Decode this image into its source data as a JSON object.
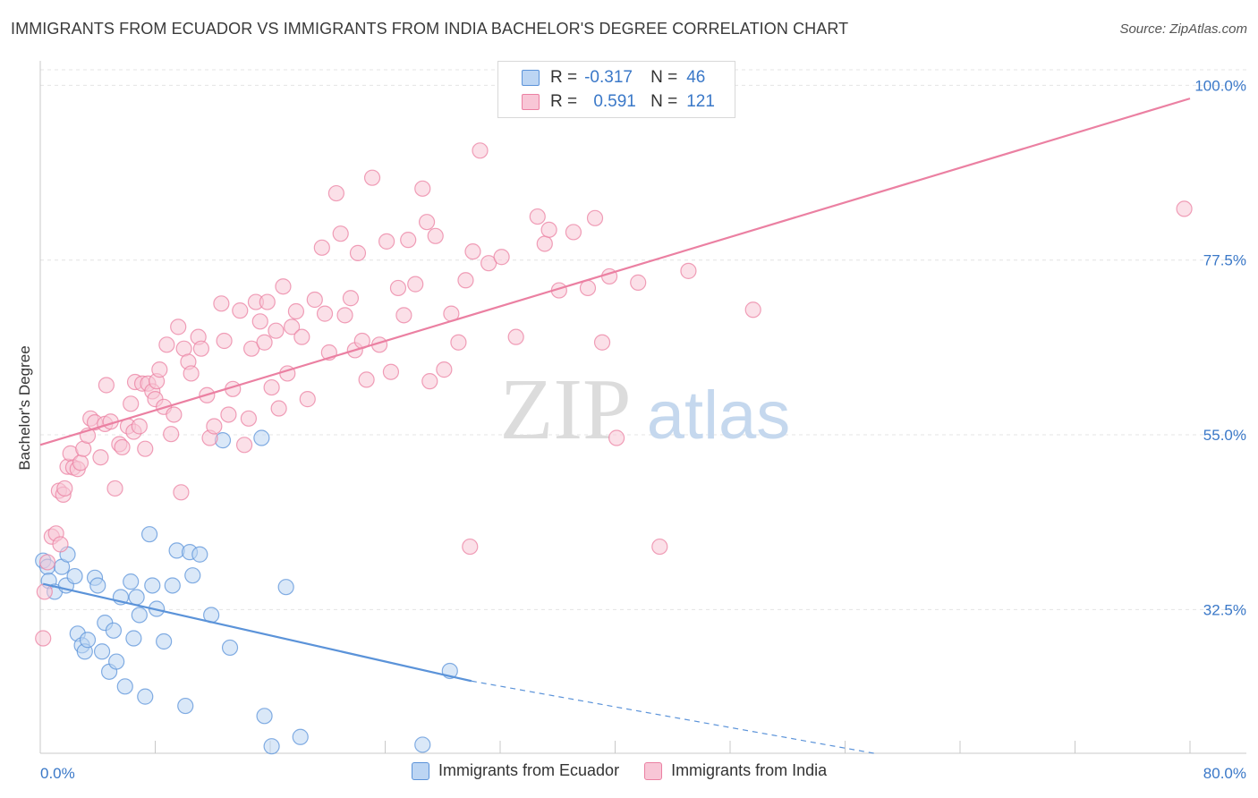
{
  "title": "IMMIGRANTS FROM ECUADOR VS IMMIGRANTS FROM INDIA BACHELOR'S DEGREE CORRELATION CHART",
  "source": "Source: ZipAtlas.com",
  "watermark": {
    "zip": "ZIP",
    "atlas": "atlas"
  },
  "legend": {
    "rows": [
      {
        "r_label": "R =",
        "r_value": "-0.317",
        "n_label": "N =",
        "n_value": "46"
      },
      {
        "r_label": "R =",
        "r_value": "0.591",
        "n_label": "N =",
        "n_value": "121"
      }
    ]
  },
  "chart_data": {
    "type": "scatter",
    "xlabel": "",
    "ylabel": "Bachelor's Degree",
    "xlim": [
      0,
      80
    ],
    "ylim": [
      14,
      102
    ],
    "x_tick_labels": [
      "0.0%",
      "80.0%"
    ],
    "y_ticks": [
      32.5,
      55.0,
      77.5,
      100.0
    ],
    "y_tick_labels": [
      "32.5%",
      "55.0%",
      "77.5%",
      "100.0%"
    ],
    "grid": true,
    "legend_position": "bottom",
    "colors": {
      "ecuador": "#5b93d9",
      "india": "#eb80a2",
      "ecuador_fill": "#bcd5f3",
      "india_fill": "#f8c6d6",
      "axis_label": "#3a78c8"
    },
    "series": [
      {
        "name": "Immigrants from Ecuador",
        "color": "#5b93d9",
        "trend": {
          "x": [
            0.2,
            30
          ],
          "y": [
            35.8,
            23.3
          ],
          "dashed_to": [
            58,
            14
          ]
        },
        "points": [
          [
            0.2,
            38.8
          ],
          [
            0.5,
            38.0
          ],
          [
            0.6,
            36.2
          ],
          [
            1.0,
            34.8
          ],
          [
            1.5,
            38.0
          ],
          [
            1.9,
            39.6
          ],
          [
            1.8,
            35.6
          ],
          [
            2.4,
            36.8
          ],
          [
            2.6,
            29.4
          ],
          [
            2.9,
            27.9
          ],
          [
            3.1,
            27.1
          ],
          [
            3.3,
            28.6
          ],
          [
            3.8,
            36.6
          ],
          [
            4.0,
            35.6
          ],
          [
            4.3,
            27.1
          ],
          [
            4.5,
            30.8
          ],
          [
            4.8,
            24.5
          ],
          [
            5.1,
            29.8
          ],
          [
            5.3,
            25.8
          ],
          [
            5.6,
            34.1
          ],
          [
            5.9,
            22.6
          ],
          [
            6.3,
            36.1
          ],
          [
            6.5,
            28.8
          ],
          [
            6.7,
            34.1
          ],
          [
            6.9,
            31.8
          ],
          [
            7.3,
            21.3
          ],
          [
            7.6,
            42.2
          ],
          [
            7.8,
            35.6
          ],
          [
            8.1,
            32.6
          ],
          [
            8.6,
            28.4
          ],
          [
            9.2,
            35.6
          ],
          [
            9.5,
            40.1
          ],
          [
            10.1,
            20.1
          ],
          [
            10.4,
            39.9
          ],
          [
            10.6,
            36.9
          ],
          [
            11.1,
            39.6
          ],
          [
            11.9,
            31.8
          ],
          [
            12.7,
            54.3
          ],
          [
            13.2,
            27.6
          ],
          [
            15.4,
            54.6
          ],
          [
            15.6,
            18.8
          ],
          [
            16.1,
            14.9
          ],
          [
            17.1,
            35.4
          ],
          [
            18.1,
            16.1
          ],
          [
            26.6,
            15.1
          ],
          [
            28.5,
            24.6
          ]
        ]
      },
      {
        "name": "Immigrants from India",
        "color": "#eb80a2",
        "trend": {
          "x": [
            0,
            80
          ],
          "y": [
            53.7,
            98.3
          ]
        },
        "points": [
          [
            0.2,
            28.8
          ],
          [
            0.3,
            34.8
          ],
          [
            0.5,
            38.6
          ],
          [
            0.8,
            41.9
          ],
          [
            1.1,
            42.3
          ],
          [
            1.3,
            47.8
          ],
          [
            1.6,
            47.3
          ],
          [
            1.7,
            48.1
          ],
          [
            1.9,
            50.9
          ],
          [
            2.1,
            52.6
          ],
          [
            2.3,
            50.8
          ],
          [
            2.6,
            50.6
          ],
          [
            2.8,
            51.4
          ],
          [
            3.0,
            53.2
          ],
          [
            3.3,
            54.9
          ],
          [
            3.5,
            57.1
          ],
          [
            3.8,
            56.6
          ],
          [
            4.2,
            52.1
          ],
          [
            4.5,
            56.4
          ],
          [
            4.6,
            61.4
          ],
          [
            4.9,
            56.7
          ],
          [
            5.2,
            48.1
          ],
          [
            5.5,
            53.8
          ],
          [
            5.7,
            53.4
          ],
          [
            6.1,
            56.1
          ],
          [
            6.3,
            59.0
          ],
          [
            6.5,
            55.4
          ],
          [
            6.6,
            61.8
          ],
          [
            6.9,
            56.1
          ],
          [
            7.1,
            61.6
          ],
          [
            7.3,
            53.2
          ],
          [
            7.5,
            61.6
          ],
          [
            7.8,
            60.6
          ],
          [
            8.0,
            59.6
          ],
          [
            8.1,
            61.9
          ],
          [
            8.3,
            63.4
          ],
          [
            8.6,
            58.6
          ],
          [
            8.8,
            66.6
          ],
          [
            9.1,
            55.1
          ],
          [
            9.3,
            57.6
          ],
          [
            9.6,
            68.9
          ],
          [
            9.8,
            47.6
          ],
          [
            10.0,
            66.1
          ],
          [
            10.3,
            64.4
          ],
          [
            10.5,
            62.9
          ],
          [
            11.0,
            67.6
          ],
          [
            11.2,
            66.1
          ],
          [
            11.6,
            60.1
          ],
          [
            11.8,
            54.6
          ],
          [
            12.1,
            56.1
          ],
          [
            12.6,
            71.9
          ],
          [
            12.8,
            67.1
          ],
          [
            13.1,
            57.6
          ],
          [
            13.4,
            60.9
          ],
          [
            13.9,
            71.0
          ],
          [
            14.2,
            53.7
          ],
          [
            14.5,
            57.1
          ],
          [
            14.7,
            66.1
          ],
          [
            15.0,
            72.1
          ],
          [
            15.3,
            69.6
          ],
          [
            15.6,
            66.9
          ],
          [
            15.8,
            72.1
          ],
          [
            16.1,
            61.1
          ],
          [
            16.4,
            68.4
          ],
          [
            16.6,
            58.4
          ],
          [
            16.9,
            74.1
          ],
          [
            17.2,
            62.9
          ],
          [
            17.5,
            68.9
          ],
          [
            17.8,
            70.9
          ],
          [
            18.2,
            67.6
          ],
          [
            18.6,
            59.6
          ],
          [
            19.1,
            72.4
          ],
          [
            19.6,
            79.1
          ],
          [
            19.8,
            70.6
          ],
          [
            20.1,
            65.6
          ],
          [
            20.6,
            86.1
          ],
          [
            20.9,
            80.9
          ],
          [
            21.2,
            70.4
          ],
          [
            21.6,
            72.6
          ],
          [
            21.9,
            65.9
          ],
          [
            22.1,
            78.4
          ],
          [
            22.4,
            67.1
          ],
          [
            22.7,
            62.1
          ],
          [
            23.1,
            88.1
          ],
          [
            23.6,
            66.6
          ],
          [
            24.1,
            79.9
          ],
          [
            24.4,
            63.1
          ],
          [
            24.9,
            73.9
          ],
          [
            25.3,
            70.4
          ],
          [
            25.6,
            80.1
          ],
          [
            26.1,
            74.4
          ],
          [
            26.6,
            86.7
          ],
          [
            26.9,
            82.4
          ],
          [
            27.1,
            61.9
          ],
          [
            27.5,
            80.6
          ],
          [
            28.1,
            63.4
          ],
          [
            28.6,
            70.6
          ],
          [
            29.1,
            66.9
          ],
          [
            29.6,
            74.9
          ],
          [
            29.9,
            40.6
          ],
          [
            30.1,
            78.6
          ],
          [
            30.6,
            91.6
          ],
          [
            31.2,
            77.1
          ],
          [
            32.1,
            77.9
          ],
          [
            33.1,
            67.6
          ],
          [
            34.6,
            83.1
          ],
          [
            35.1,
            79.6
          ],
          [
            35.4,
            81.4
          ],
          [
            36.1,
            73.6
          ],
          [
            37.1,
            81.1
          ],
          [
            38.1,
            73.9
          ],
          [
            38.6,
            82.9
          ],
          [
            39.1,
            66.9
          ],
          [
            39.6,
            75.4
          ],
          [
            40.1,
            54.6
          ],
          [
            41.6,
            74.6
          ],
          [
            43.1,
            40.6
          ],
          [
            45.1,
            76.1
          ],
          [
            49.6,
            71.1
          ],
          [
            79.6,
            84.1
          ],
          [
            1.4,
            40.9
          ]
        ]
      }
    ]
  },
  "bottom_legend": [
    {
      "label": "Immigrants from Ecuador"
    },
    {
      "label": "Immigrants from India"
    }
  ]
}
